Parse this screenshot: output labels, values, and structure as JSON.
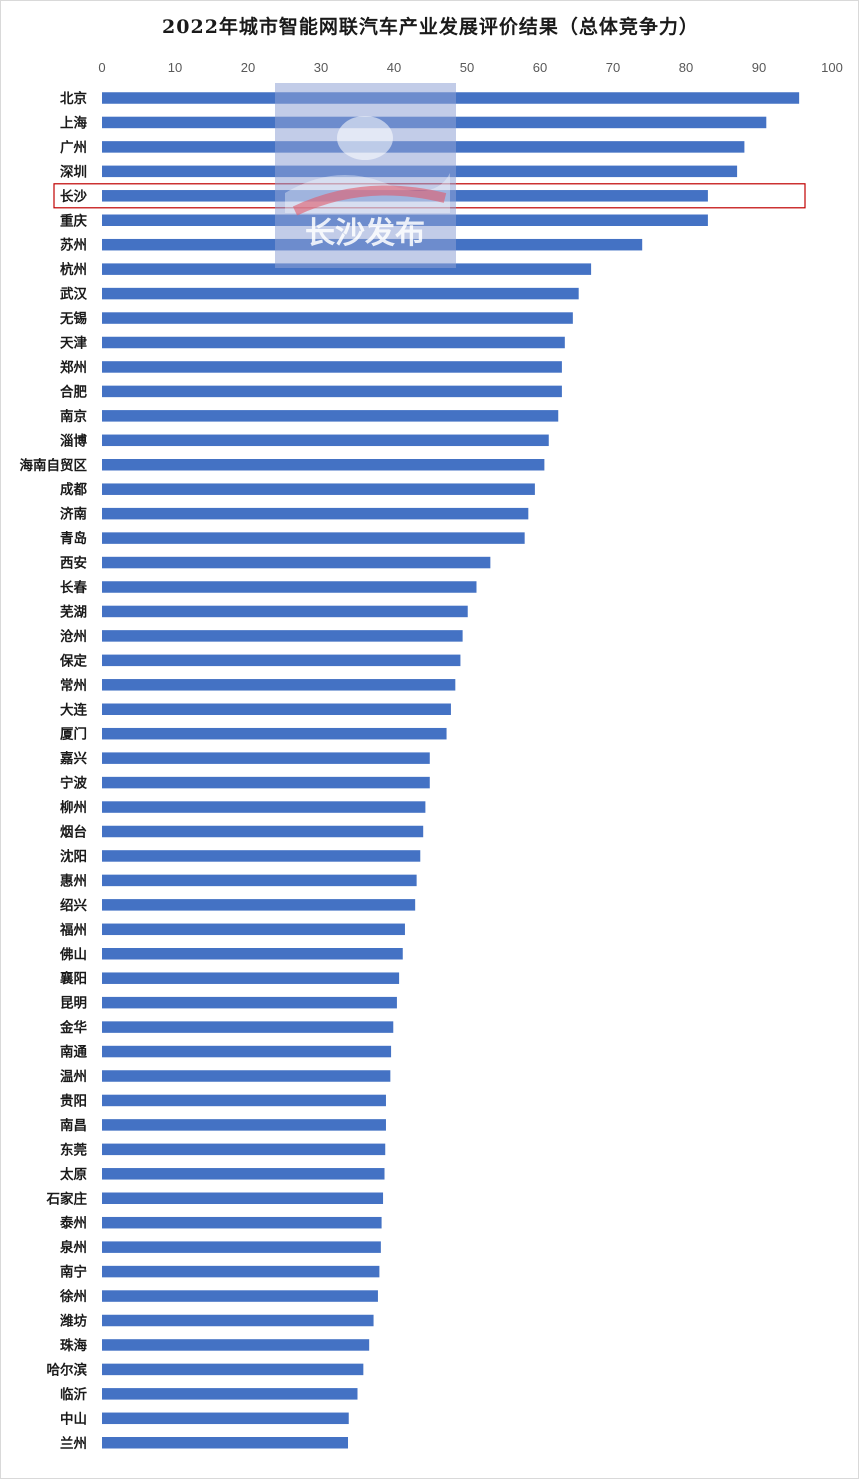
{
  "chart_data": {
    "type": "bar",
    "orientation": "horizontal",
    "title": "2022年城市智能网联汽车产业发展评价结果（总体竞争力）",
    "xlim": [
      0,
      100
    ],
    "xticks": [
      0,
      10,
      20,
      30,
      40,
      50,
      60,
      70,
      80,
      90,
      100
    ],
    "x_axis_position": "top",
    "grid": false,
    "bar_color": "#4472c4",
    "highlight_color": "#c00000",
    "highlighted_category": "长沙",
    "categories": [
      "北京",
      "上海",
      "广州",
      "深圳",
      "长沙",
      "重庆",
      "苏州",
      "杭州",
      "武汉",
      "无锡",
      "天津",
      "郑州",
      "合肥",
      "南京",
      "淄博",
      "海南自贸区",
      "成都",
      "济南",
      "青岛",
      "西安",
      "长春",
      "芜湖",
      "沧州",
      "保定",
      "常州",
      "大连",
      "厦门",
      "嘉兴",
      "宁波",
      "柳州",
      "烟台",
      "沈阳",
      "惠州",
      "绍兴",
      "福州",
      "佛山",
      "襄阳",
      "昆明",
      "金华",
      "南通",
      "温州",
      "贵阳",
      "南昌",
      "东莞",
      "太原",
      "石家庄",
      "泰州",
      "泉州",
      "南宁",
      "徐州",
      "潍坊",
      "珠海",
      "哈尔滨",
      "临沂",
      "中山",
      "兰州"
    ],
    "values": [
      95.5,
      91.0,
      88.0,
      87.0,
      83.0,
      83.0,
      74.0,
      67.0,
      65.3,
      64.5,
      63.4,
      63.0,
      63.0,
      62.5,
      61.2,
      60.6,
      59.3,
      58.4,
      57.9,
      53.2,
      51.3,
      50.1,
      49.4,
      49.1,
      48.4,
      47.8,
      47.2,
      44.9,
      44.9,
      44.3,
      44.0,
      43.6,
      43.1,
      42.9,
      41.5,
      41.2,
      40.7,
      40.4,
      39.9,
      39.6,
      39.5,
      38.9,
      38.9,
      38.8,
      38.7,
      38.5,
      38.3,
      38.2,
      38.0,
      37.8,
      37.2,
      36.6,
      35.8,
      35.0,
      33.8,
      33.7
    ]
  },
  "watermark": {
    "text": "长沙发布"
  }
}
